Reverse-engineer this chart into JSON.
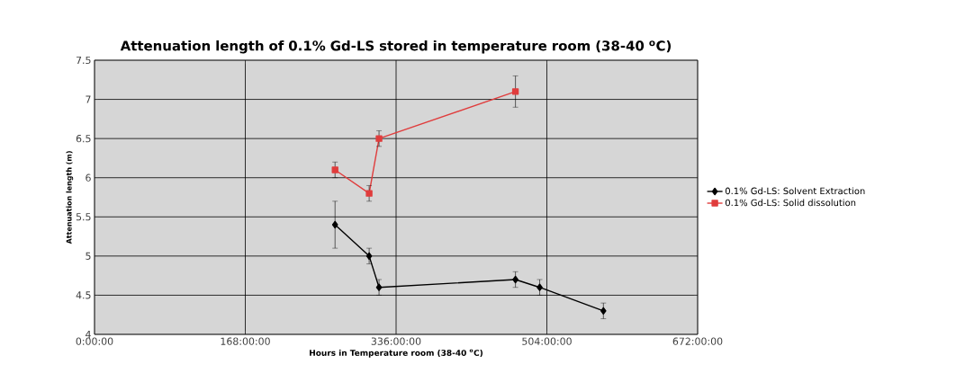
{
  "chart_data": {
    "type": "line",
    "title": "Attenuation length of 0.1% Gd-LS stored in temperature room (38-40 $^{o}$C)",
    "xlabel": "Hours in Temperature room (38-40 $^{o}$C)",
    "ylabel": "Attenuation length (m)",
    "xlim": [
      0,
      672
    ],
    "xticks": [
      {
        "value": 0,
        "label": "0:00:00"
      },
      {
        "value": 168,
        "label": "168:00:00"
      },
      {
        "value": 336,
        "label": "336:00:00"
      },
      {
        "value": 504,
        "label": "504:00:00"
      },
      {
        "value": 672,
        "label": "672:00:00"
      }
    ],
    "ylim": [
      4,
      7.5
    ],
    "yticks": [
      4,
      4.5,
      5,
      5.5,
      6,
      6.5,
      7,
      7.5
    ],
    "grid": true,
    "legend": "right",
    "series": [
      {
        "name": "0.1% Gd-LS: Solvent Extraction",
        "color": "#000000",
        "marker": "diamond",
        "x": [
          268,
          306,
          317,
          469,
          496,
          567
        ],
        "values": [
          5.4,
          5.0,
          4.6,
          4.7,
          4.6,
          4.3
        ],
        "errors": [
          0.3,
          0.1,
          0.1,
          0.1,
          0.1,
          0.1
        ]
      },
      {
        "name": "0.1% Gd-LS: Solid dissolution",
        "color": "#e03c3c",
        "marker": "square",
        "x": [
          268,
          306,
          317,
          469
        ],
        "values": [
          6.1,
          5.8,
          6.5,
          7.1
        ],
        "errors": [
          0.1,
          0.1,
          0.1,
          0.2
        ]
      }
    ]
  }
}
